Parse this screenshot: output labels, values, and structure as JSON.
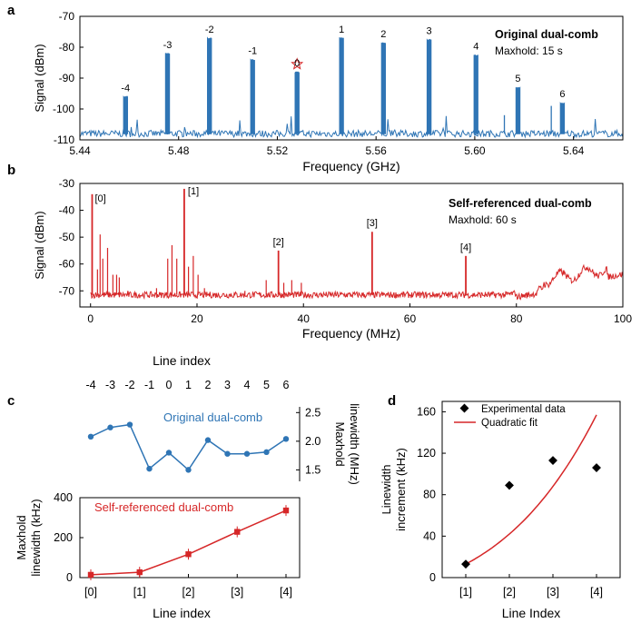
{
  "colors": {
    "blue": "#2f75b5",
    "red": "#d62728",
    "black": "#000000"
  },
  "chart_data": [
    {
      "type": "line",
      "panel_label": "a",
      "annotation_title": "Original dual-comb",
      "annotation_sub": "Maxhold: 15 s",
      "xlabel": "Frequency (GHz)",
      "ylabel": "Signal (dBm)",
      "xlim": [
        5.44,
        5.66
      ],
      "ylim": [
        -110,
        -70
      ],
      "xticks": [
        "5.44",
        "5.48",
        "5.52",
        "5.56",
        "5.60",
        "5.64"
      ],
      "xtick_values": [
        5.44,
        5.48,
        5.52,
        5.56,
        5.6,
        5.64
      ],
      "yticks": [
        "-70",
        "-80",
        "-90",
        "-100",
        "-110"
      ],
      "ytick_values": [
        -70,
        -80,
        -90,
        -100,
        -110
      ],
      "noise_floor": -108,
      "peaks": [
        {
          "label": "-4",
          "x": 5.4585,
          "y": -96
        },
        {
          "label": "-3",
          "x": 5.4755,
          "y": -82
        },
        {
          "label": "-2",
          "x": 5.4925,
          "y": -77
        },
        {
          "label": "-1",
          "x": 5.51,
          "y": -84
        },
        {
          "label": "0",
          "x": 5.528,
          "y": -88
        },
        {
          "label": "1",
          "x": 5.546,
          "y": -77
        },
        {
          "label": "2",
          "x": 5.563,
          "y": -78.5
        },
        {
          "label": "3",
          "x": 5.5815,
          "y": -77.5
        },
        {
          "label": "4",
          "x": 5.6005,
          "y": -82.5
        },
        {
          "label": "5",
          "x": 5.6175,
          "y": -93
        },
        {
          "label": "6",
          "x": 5.6355,
          "y": -98
        }
      ],
      "star_marker": {
        "x": 5.528,
        "y": -85.5
      }
    },
    {
      "type": "line",
      "panel_label": "b",
      "annotation_title": "Self-referenced dual-comb",
      "annotation_sub": "Maxhold: 60 s",
      "xlabel": "Frequency (MHz)",
      "ylabel": "Signal (dBm)",
      "xlim": [
        -2,
        100
      ],
      "ylim": [
        -76,
        -30
      ],
      "xticks": [
        "0",
        "20",
        "40",
        "60",
        "80",
        "100"
      ],
      "xtick_values": [
        0,
        20,
        40,
        60,
        80,
        100
      ],
      "yticks": [
        "-30",
        "-40",
        "-50",
        "-60",
        "-70"
      ],
      "ytick_values": [
        -30,
        -40,
        -50,
        -60,
        -70
      ],
      "noise_floor": -71.5,
      "peaks": [
        {
          "label": "[0]",
          "x": 0.3,
          "y": -34
        },
        {
          "label": "[1]",
          "x": 17.6,
          "y": -32
        },
        {
          "label": "[2]",
          "x": 35.3,
          "y": -55
        },
        {
          "label": "[3]",
          "x": 52.9,
          "y": -48
        },
        {
          "label": "[4]",
          "x": 70.5,
          "y": -57
        }
      ],
      "spurs": [
        {
          "x": 1.8,
          "y": -49
        },
        {
          "x": 2.3,
          "y": -58
        },
        {
          "x": 3.2,
          "y": -54
        },
        {
          "x": 4.2,
          "y": -64
        },
        {
          "x": 4.9,
          "y": -64
        },
        {
          "x": 5.4,
          "y": -65
        },
        {
          "x": 1.3,
          "y": -62
        },
        {
          "x": 7.0,
          "y": -70
        },
        {
          "x": 14.5,
          "y": -58
        },
        {
          "x": 15.3,
          "y": -53
        },
        {
          "x": 16.2,
          "y": -58
        },
        {
          "x": 18.4,
          "y": -61
        },
        {
          "x": 19.3,
          "y": -57
        },
        {
          "x": 20.2,
          "y": -64
        },
        {
          "x": 21.4,
          "y": -69
        },
        {
          "x": 33.0,
          "y": -66
        },
        {
          "x": 36.3,
          "y": -67
        },
        {
          "x": 37.8,
          "y": -66
        },
        {
          "x": 39.6,
          "y": -67
        },
        {
          "x": 12.4,
          "y": -69
        },
        {
          "x": 29.0,
          "y": -70
        }
      ]
    },
    {
      "type": "line",
      "panel_label": "c",
      "top_title": "Line index",
      "top_xticks": [
        "-4",
        "-3",
        "-2",
        "-1",
        "0",
        "1",
        "2",
        "3",
        "4",
        "5",
        "6"
      ],
      "series": [
        {
          "name": "Original dual-comb",
          "x_index": [
            -4,
            -3,
            -2,
            -1,
            0,
            1,
            2,
            3,
            4,
            5,
            6
          ],
          "values": [
            2.08,
            2.24,
            2.29,
            1.52,
            1.8,
            1.5,
            2.02,
            1.78,
            1.78,
            1.81,
            2.04
          ],
          "ylabel_lines": [
            "Maxhold",
            "linewidth (MHz)"
          ],
          "ylim": [
            1.3,
            2.6
          ],
          "yticks": [
            "2.5",
            "2.0",
            "1.5"
          ],
          "ytick_values": [
            2.5,
            2.0,
            1.5
          ]
        },
        {
          "name": "Self-referenced dual-comb",
          "categories": [
            "[0]",
            "[1]",
            "[2]",
            "[3]",
            "[4]"
          ],
          "values": [
            14,
            27,
            117,
            229,
            336
          ],
          "ylabel_lines": [
            "Maxhold",
            "linewidth (kHz)"
          ],
          "xlabel": "Line index",
          "ylim": [
            0,
            400
          ],
          "yticks": [
            "400",
            "200",
            "0"
          ],
          "ytick_values": [
            400,
            200,
            0
          ]
        }
      ]
    },
    {
      "type": "scatter",
      "panel_label": "d",
      "categories": [
        "[1]",
        "[2]",
        "[3]",
        "[4]"
      ],
      "series": [
        {
          "name": "Experimental data",
          "values": [
            13,
            89,
            113,
            106
          ]
        },
        {
          "name": "Quadratic fit",
          "values": [
            13,
            42,
            88,
            157
          ]
        }
      ],
      "legend": [
        "Experimental data",
        "Quadratic fit"
      ],
      "xlabel": "Line Index",
      "ylabel_lines": [
        "Linewidth",
        "increment (kHz)"
      ],
      "ylim": [
        0,
        170
      ],
      "yticks": [
        "160",
        "120",
        "80",
        "40",
        "0"
      ],
      "ytick_values": [
        160,
        120,
        80,
        40,
        0
      ]
    }
  ]
}
